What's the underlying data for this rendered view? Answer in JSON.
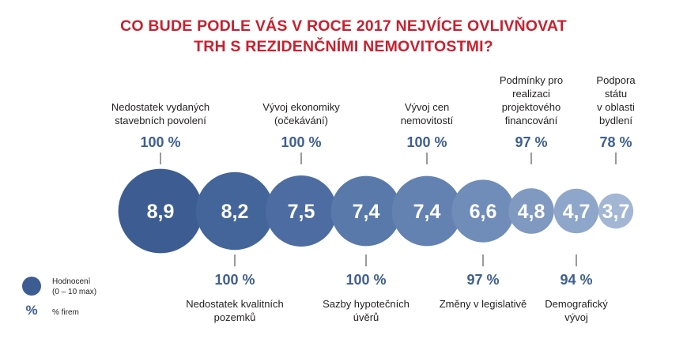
{
  "title_line1": "CO BUDE PODLE VÁS V ROCE 2017 NEJVÍCE OVLIVŇOVAT",
  "title_line2": "TRH S REZIDENČNÍMI NEMOVITOSTMI?",
  "chart_data": {
    "type": "bubble",
    "title": "CO BUDE PODLE VÁS V ROCE 2017 NEJVÍCE OVLIVŇOVAT TRH S REZIDENČNÍMI NEMOVITOSTMI?",
    "items": [
      {
        "label": [
          "Nedostatek vydaných",
          "stavebních povolení"
        ],
        "rating": 8.9,
        "rating_label": "8,9",
        "pct": "100 %",
        "side": "top",
        "color": "#3d5d92"
      },
      {
        "label": [
          "Nedostatek kvalitních",
          "pozemků"
        ],
        "rating": 8.2,
        "rating_label": "8,2",
        "pct": "100 %",
        "side": "bottom",
        "color": "#43659a"
      },
      {
        "label": [
          "Vývoj ekonomiky",
          "(očekávání)"
        ],
        "rating": 7.5,
        "rating_label": "7,5",
        "pct": "100 %",
        "side": "top",
        "color": "#4d6da2"
      },
      {
        "label": [
          "Sazby hypotečních",
          "úvěrů"
        ],
        "rating": 7.4,
        "rating_label": "7,4",
        "pct": "100 %",
        "side": "bottom",
        "color": "#5879aa"
      },
      {
        "label": [
          "Vývoj cen",
          "nemovitostí"
        ],
        "rating": 7.4,
        "rating_label": "7,4",
        "pct": "100 %",
        "side": "top",
        "color": "#6482b1"
      },
      {
        "label": [
          "Změny v legislativě"
        ],
        "rating": 6.6,
        "rating_label": "6,6",
        "pct": "97 %",
        "side": "bottom",
        "color": "#708cb9"
      },
      {
        "label": [
          "Podmínky pro",
          "realizaci",
          "projektového",
          "financování"
        ],
        "rating": 4.8,
        "rating_label": "4,8",
        "pct": "97 %",
        "side": "top",
        "color": "#7f99c1"
      },
      {
        "label": [
          "Demografický",
          "vývoj"
        ],
        "rating": 4.7,
        "rating_label": "4,7",
        "pct": "94 %",
        "side": "bottom",
        "color": "#8ea6c9"
      },
      {
        "label": [
          "Podpora",
          "státu",
          "v oblasti",
          "bydlení"
        ],
        "rating": 3.7,
        "rating_label": "3,7",
        "pct": "78 %",
        "side": "top",
        "color": "#a3b6d4"
      }
    ]
  },
  "legend": {
    "rating_label_line1": "Hodnocení",
    "rating_label_line2": "(0 – 10 max)",
    "pct_symbol": "%",
    "pct_label": "% firem",
    "marker_color": "#3d5d92"
  }
}
